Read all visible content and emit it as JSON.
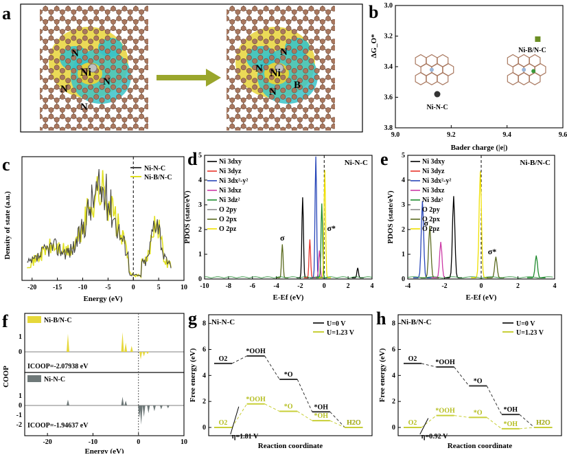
{
  "panel_letters": [
    "a",
    "b",
    "c",
    "d",
    "e",
    "f",
    "g",
    "h"
  ],
  "panel_a": {
    "left_atoms": [
      "N",
      "N",
      "Ni",
      "N",
      "N"
    ],
    "right_atoms": [
      "N",
      "N",
      "Ni",
      "N",
      "B"
    ],
    "colors": {
      "carbon": "#a9785f",
      "nitrogen": "#a7c7e7",
      "pos_density": "#e8d33a",
      "neg_density": "#39c3c8",
      "arrow": "#9aa62c"
    }
  },
  "chart_data": [
    {
      "id": "b",
      "type": "scatter",
      "xlabel": "Bader charge (|e|)",
      "ylabel": "ΔG_O*",
      "xlim": [
        9.0,
        9.6
      ],
      "ylim": [
        3.8,
        3.0
      ],
      "y_inverted": true,
      "x_ticks": [
        "9.0",
        "9.2",
        "9.4",
        "9.6"
      ],
      "y_ticks": [
        "3.0",
        "3.2",
        "3.4",
        "3.6",
        "3.8"
      ],
      "series": [
        {
          "name": "Ni-N-C",
          "x": [
            9.15
          ],
          "y": [
            3.58
          ],
          "color": "#333333",
          "marker": "circle"
        },
        {
          "name": "Ni-B/N-C",
          "x": [
            9.51
          ],
          "y": [
            3.22
          ],
          "color": "#6b8e23",
          "marker": "square"
        }
      ]
    },
    {
      "id": "c",
      "type": "line",
      "xlabel": "Energy (eV)",
      "ylabel": "Density of state (a.u.)",
      "xlim": [
        -22,
        10
      ],
      "x_ticks": [
        "-20",
        "-15",
        "-10",
        "-5",
        "0",
        "5",
        "10"
      ],
      "legend": [
        "Ni-N-C",
        "Ni-B/N-C"
      ],
      "series_colors": [
        "#444444",
        "#e0e020"
      ]
    },
    {
      "id": "d",
      "type": "line",
      "title": "Ni-N-C",
      "xlabel": "E-Ef (eV)",
      "ylabel": "PDOS (state/eV)",
      "xlim": [
        -10,
        4
      ],
      "ylim": [
        0,
        5
      ],
      "x_ticks": [
        "-10",
        "-8",
        "-6",
        "-4",
        "-2",
        "0",
        "2",
        "4"
      ],
      "y_ticks": [
        "0",
        "1",
        "2",
        "3",
        "4",
        "5"
      ],
      "legend": [
        "Ni 3dxy",
        "Ni 3dyz",
        "Ni 3dx²-y²",
        "Ni 3dxz",
        "Ni 3dz²",
        "O 2py",
        "O 2px",
        "O 2pz"
      ],
      "annotations": [
        "σ",
        "σ*"
      ],
      "peaks": [
        {
          "series": 0,
          "x": -1.8,
          "y": 3.25
        },
        {
          "series": 1,
          "x": -1.2,
          "y": 1.55
        },
        {
          "series": 2,
          "x": -0.7,
          "y": 4.9
        },
        {
          "series": 3,
          "x": -0.4,
          "y": 1.1
        },
        {
          "series": 4,
          "x": -0.2,
          "y": 3.0
        },
        {
          "series": 6,
          "x": -3.5,
          "y": 1.35
        },
        {
          "series": 7,
          "x": 0.05,
          "y": 4.35
        },
        {
          "series": 0,
          "x": 2.8,
          "y": 0.4
        }
      ]
    },
    {
      "id": "e",
      "type": "line",
      "title": "Ni-B/N-C",
      "xlabel": "E-Ef (eV)",
      "ylabel": "PDOS (state/eV)",
      "xlim": [
        -4,
        4
      ],
      "ylim": [
        0,
        5
      ],
      "x_ticks": [
        "-4",
        "-2",
        "0",
        "2",
        "4"
      ],
      "y_ticks": [
        "0",
        "1",
        "2",
        "3",
        "4",
        "5"
      ],
      "legend": [
        "Ni 3dxy",
        "Ni 3dyz",
        "Ni 3dx²-y²",
        "Ni 3dxz",
        "Ni 3dz²",
        "O 2py",
        "O 2px",
        "O 2pz"
      ],
      "annotations": [
        "σ",
        "σ*"
      ],
      "peaks": [
        {
          "series": 2,
          "x": -3.2,
          "y": 3.1
        },
        {
          "series": 6,
          "x": -2.8,
          "y": 2.1
        },
        {
          "series": 3,
          "x": -2.2,
          "y": 1.45
        },
        {
          "series": 0,
          "x": -1.5,
          "y": 3.3
        },
        {
          "series": 7,
          "x": -0.05,
          "y": 4.3
        },
        {
          "series": 6,
          "x": 0.8,
          "y": 0.85
        },
        {
          "series": 4,
          "x": 3.0,
          "y": 0.9
        }
      ]
    },
    {
      "id": "f",
      "type": "area",
      "xlabel": "Energy (eV)",
      "ylabel": "COOP",
      "xlim": [
        -25,
        10
      ],
      "x_ticks": [
        "-20",
        "-10",
        "0",
        "10"
      ],
      "y_ticks_top": [
        "1",
        "0"
      ],
      "y_ticks_bottom": [
        "1",
        "0",
        "-1",
        "-2"
      ],
      "series": [
        {
          "name": "Ni-B/N-C",
          "icoop": "ICOOP=-2.07938 eV",
          "color": "#e6d83a"
        },
        {
          "name": "Ni-N-C",
          "icoop": "ICOOP=-1.94637 eV",
          "color": "#6e7878"
        }
      ]
    },
    {
      "id": "g",
      "type": "line",
      "title": "Ni-N-C",
      "xlabel": "Reaction coordinate",
      "ylabel": "Free energy (eV)",
      "ylim": [
        0,
        8
      ],
      "y_ticks": [
        "0",
        "2",
        "4",
        "6",
        "8"
      ],
      "steps": [
        "O2",
        "*OOH",
        "*O",
        "*OH",
        "H2O"
      ],
      "series": [
        {
          "name": "U=0 V",
          "values": [
            4.92,
            5.5,
            3.7,
            1.2,
            0
          ],
          "color": "#333333"
        },
        {
          "name": "U=1.23 V",
          "values": [
            0,
            1.81,
            1.24,
            0.52,
            0
          ],
          "color": "#c8cf37"
        }
      ],
      "eta": "η=1.81 V"
    },
    {
      "id": "h",
      "type": "line",
      "title": "Ni-B/N-C",
      "xlabel": "Reaction coordinate",
      "ylabel": "Free energy (eV)",
      "ylim": [
        0,
        8
      ],
      "y_ticks": [
        "0",
        "2",
        "4",
        "6",
        "8"
      ],
      "steps": [
        "O2",
        "*OOH",
        "*O",
        "*OH",
        "H2O"
      ],
      "series": [
        {
          "name": "U=0 V",
          "values": [
            4.92,
            4.65,
            3.2,
            1.0,
            0
          ],
          "color": "#333333"
        },
        {
          "name": "U=1.23 V",
          "values": [
            0,
            0.92,
            0.77,
            -0.1,
            0
          ],
          "color": "#c8cf37"
        }
      ],
      "eta": "η=0.92 V"
    }
  ]
}
